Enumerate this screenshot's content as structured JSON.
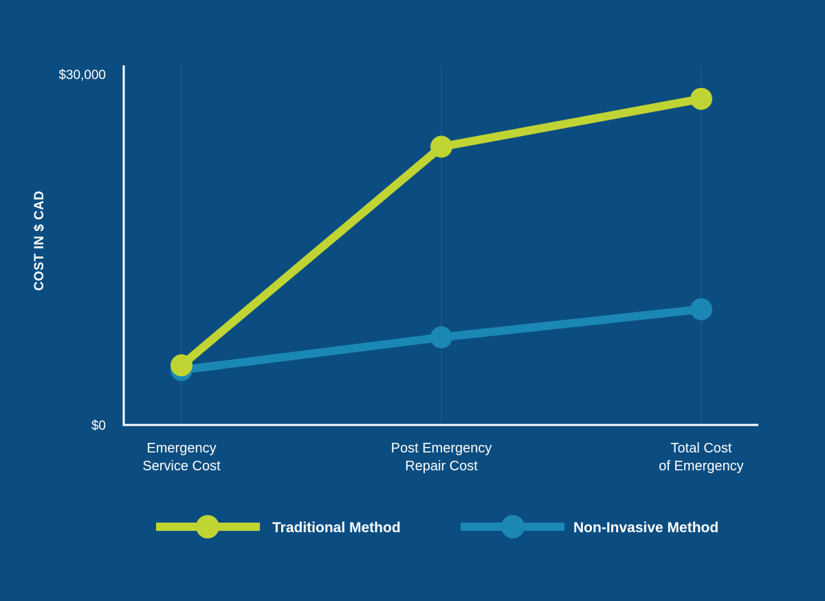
{
  "chart_data": {
    "type": "line",
    "title": "",
    "xlabel": "",
    "ylabel": "COST IN $ CAD",
    "ylim": [
      0,
      30000
    ],
    "y_tick_labels": [
      "$0",
      "$30,000"
    ],
    "y_ticks": [
      0,
      30000
    ],
    "categories": [
      [
        "Emergency",
        "Service Cost"
      ],
      [
        "Post Emergency",
        "Repair Cost"
      ],
      [
        "Total Cost",
        "of Emergency"
      ]
    ],
    "grid": "vertical",
    "legend_position": "bottom",
    "series": [
      {
        "name": "Traditional Method",
        "color": "#c0d433",
        "values": [
          5100,
          23800,
          27900
        ]
      },
      {
        "name": "Non-Invasive Method",
        "color": "#1b87b5",
        "values": [
          4700,
          7500,
          9900
        ]
      }
    ]
  },
  "colors": {
    "background": "#0b4d80",
    "axis": "#ffffff",
    "gridline": "#1e5f8f"
  }
}
